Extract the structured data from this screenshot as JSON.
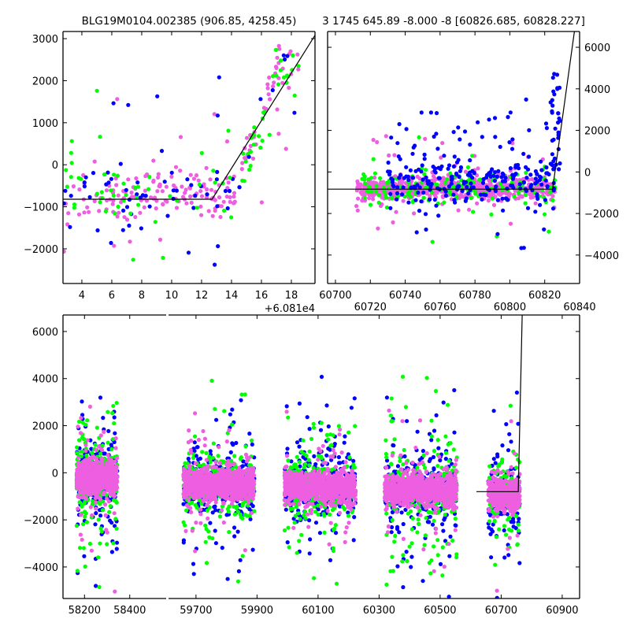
{
  "colors": {
    "blue": "#0000ff",
    "green": "#00ff00",
    "pink": "#ee5ee0",
    "line": "#000000"
  },
  "offset_label": "+6.081e4",
  "chart_data": [
    {
      "id": "phase-plot",
      "type": "scatter",
      "title": "BLG19M0104.002385 (906.85, 4258.45)",
      "xlim": [
        2.74,
        19.58
      ],
      "ylim": [
        -2825,
        3170
      ],
      "xticks": [
        4,
        6,
        8,
        10,
        12,
        14,
        16,
        18
      ],
      "yticks": [
        -2000,
        -1000,
        0,
        1000,
        2000,
        3000
      ],
      "ytick_side": "left",
      "model_line": {
        "x": [
          2.74,
          12.7,
          19.58
        ],
        "y": [
          -820,
          -820,
          3080
        ]
      },
      "clouds": [
        {
          "color": "pink",
          "n": 150,
          "x": [
            2.8,
            14.3
          ],
          "y_center": -700,
          "sd": 260,
          "outlier": 0.12,
          "rise": [
            14.2,
            1100
          ]
        },
        {
          "color": "blue",
          "n": 60,
          "x": [
            2.8,
            14.3
          ],
          "y_center": -650,
          "sd": 350,
          "outlier": 0.3,
          "rise": [
            14.2,
            1100
          ]
        },
        {
          "color": "green",
          "n": 50,
          "x": [
            2.8,
            14.3
          ],
          "y_center": -650,
          "sd": 350,
          "outlier": 0.3,
          "rise": [
            14.2,
            1100
          ]
        },
        {
          "color": "pink",
          "n": 45,
          "x": [
            14.3,
            18.5
          ],
          "y_center": -700,
          "sd": 250,
          "outlier": 0.05,
          "rise": [
            14.2,
            1050
          ]
        },
        {
          "color": "green",
          "n": 35,
          "x": [
            14.5,
            18.5
          ],
          "y_center": -700,
          "sd": 300,
          "outlier": 0.05,
          "rise": [
            14.2,
            1000
          ]
        },
        {
          "color": "blue",
          "n": 8,
          "x": [
            14.5,
            18.5
          ],
          "y_center": -700,
          "sd": 300,
          "outlier": 0.1,
          "rise": [
            14.2,
            1100
          ]
        }
      ]
    },
    {
      "id": "zoom-plot",
      "type": "scatter",
      "title": "3 1745 645.89 -8.000 -8 [60826.685, 60828.227]",
      "xlim": [
        60695.5,
        60840
      ],
      "ylim": [
        -5370,
        6760
      ],
      "xticks": [
        60700,
        60720,
        60740,
        60760,
        60780,
        60800,
        60820,
        60840
      ],
      "yticks": [
        -4000,
        -2000,
        0,
        2000,
        4000,
        6000
      ],
      "ytick_side": "right",
      "model_line": {
        "x": [
          60695.5,
          60824.5,
          60837
        ],
        "y": [
          -830,
          -830,
          6760
        ]
      },
      "clouds": [
        {
          "color": "pink",
          "n": 700,
          "x": [
            60712,
            60826
          ],
          "y_center": -800,
          "sd": 280,
          "outlier": 0.05
        },
        {
          "color": "green",
          "n": 160,
          "x": [
            60712,
            60826
          ],
          "y_center": -800,
          "sd": 450,
          "outlier": 0.15
        },
        {
          "color": "blue",
          "n": 260,
          "x": [
            60730,
            60826
          ],
          "y_center": -500,
          "sd": 550,
          "outlier": 0.2,
          "spikes": true
        },
        {
          "color": "blue",
          "n": 30,
          "x": [
            60824,
            60829
          ],
          "y_center": 2500,
          "sd": 1500,
          "outlier": 0
        }
      ]
    },
    {
      "id": "time-series",
      "type": "scatter",
      "title": "",
      "broken_axis": true,
      "segments": [
        {
          "xlim": [
            58105,
            58561
          ],
          "xticks": [
            58200,
            58400
          ]
        },
        {
          "xlim": [
            59610,
            60957
          ],
          "xticks": [
            59700,
            59900,
            60100,
            60300,
            60500,
            60700,
            60900
          ]
        }
      ],
      "ylim": [
        -5340,
        6700
      ],
      "yticks": [
        -4000,
        -2000,
        0,
        2000,
        4000,
        6000
      ],
      "ytick_side": "left",
      "model_line": {
        "x": [
          60619,
          60756,
          60769
        ],
        "y": [
          -800,
          -800,
          6700
        ]
      },
      "seasons": [
        {
          "x": [
            58165,
            58345
          ],
          "y_center": -200,
          "n": 1400
        },
        {
          "x": [
            59659,
            59891
          ],
          "y_center": -500,
          "n": 1400
        },
        {
          "x": [
            59990,
            60223
          ],
          "y_center": -600,
          "n": 1400
        },
        {
          "x": [
            60318,
            60555
          ],
          "y_center": -700,
          "n": 1400
        },
        {
          "x": [
            60658,
            60761
          ],
          "y_center": -900,
          "n": 700
        }
      ]
    }
  ]
}
